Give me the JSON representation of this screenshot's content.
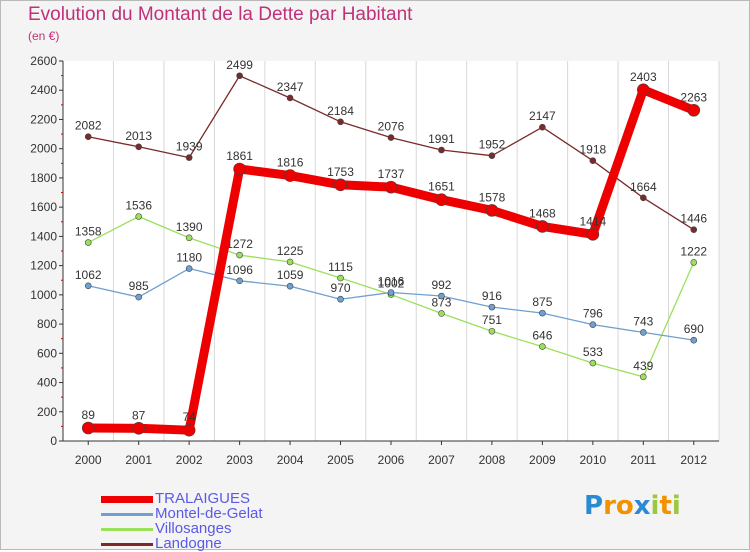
{
  "title": "Evolution du Montant de la Dette par Habitant",
  "unit": "(en €)",
  "chart_data": {
    "type": "line",
    "title": "Evolution du Montant de la Dette par Habitant",
    "ylabel": "(en €)",
    "xlabel": "",
    "ylim": [
      0,
      2600
    ],
    "yticks": [
      0,
      200,
      400,
      600,
      800,
      1000,
      1200,
      1400,
      1600,
      1800,
      2000,
      2200,
      2400,
      2600
    ],
    "categories": [
      "2000",
      "2001",
      "2002",
      "2003",
      "2004",
      "2005",
      "2006",
      "2007",
      "2008",
      "2009",
      "2010",
      "2011",
      "2012"
    ],
    "grid": "vertical",
    "series": [
      {
        "name": "Landogne",
        "color": "#7a2a2a",
        "values": [
          2082,
          2013,
          1939,
          2499,
          2347,
          2184,
          2076,
          1991,
          1952,
          2147,
          1918,
          1664,
          1446
        ]
      },
      {
        "name": "Villosanges",
        "color": "#9be05a",
        "values": [
          1358,
          1536,
          1390,
          1272,
          1225,
          1115,
          1002,
          873,
          751,
          646,
          533,
          439,
          1222
        ]
      },
      {
        "name": "Montel-de-Gelat",
        "color": "#6fa0d0",
        "values": [
          1062,
          985,
          1180,
          1096,
          1059,
          970,
          1016,
          992,
          916,
          875,
          796,
          743,
          690
        ]
      },
      {
        "name": "TRALAIGUES",
        "color": "#ee0000",
        "values": [
          89,
          87,
          74,
          1861,
          1816,
          1753,
          1737,
          1651,
          1578,
          1468,
          1414,
          2403,
          2263
        ]
      }
    ]
  },
  "legend": [
    {
      "name": "TRALAIGUES",
      "color": "#ee0000"
    },
    {
      "name": "Montel-de-Gelat",
      "color": "#6fa0d0"
    },
    {
      "name": "Villosanges",
      "color": "#9be05a"
    },
    {
      "name": "Landogne",
      "color": "#7a2a2a"
    }
  ],
  "logo": {
    "letters": [
      "P",
      "r",
      "o",
      "x",
      "i",
      "t",
      "i"
    ],
    "colors": [
      "#2a8bd4",
      "#f39200",
      "#f39200",
      "#2a8bd4",
      "#9bc83c",
      "#f39200",
      "#9bc83c"
    ]
  }
}
